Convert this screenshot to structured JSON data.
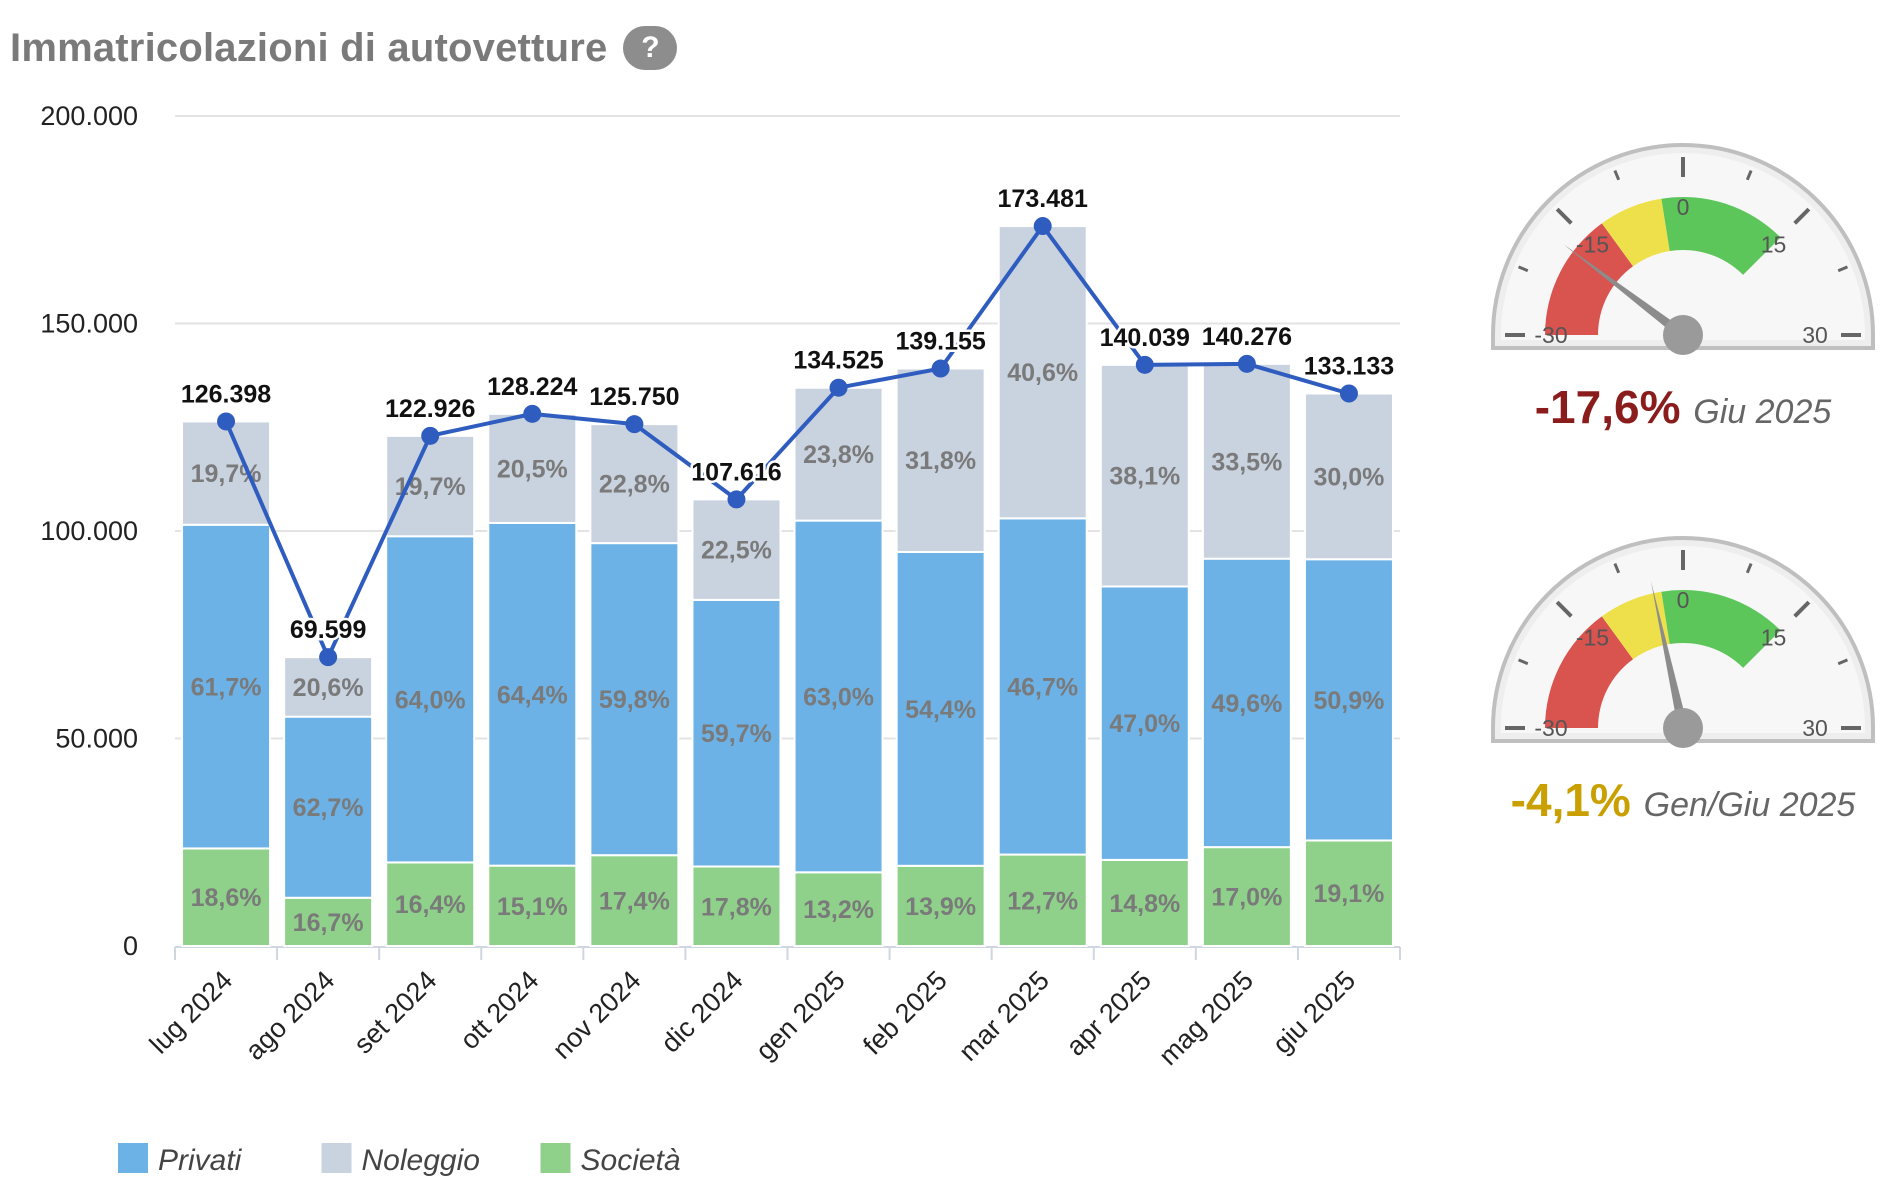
{
  "header": {
    "title": "Immatricolazioni di autovetture",
    "help_label": "?"
  },
  "chart_data": {
    "type": "bar",
    "stacked": true,
    "categories": [
      "lug 2024",
      "ago 2024",
      "set 2024",
      "ott 2024",
      "nov 2024",
      "dic 2024",
      "gen 2025",
      "feb 2025",
      "mar 2025",
      "apr 2025",
      "mag 2025",
      "giu 2025"
    ],
    "yticks": [
      "0",
      "50.000",
      "100.000",
      "150.000",
      "200.000"
    ],
    "ylim": [
      0,
      200000
    ],
    "grid": true,
    "legend_position": "bottom-left",
    "totals": [
      126398,
      69599,
      122926,
      128224,
      125750,
      107616,
      134525,
      139155,
      173481,
      140039,
      140276,
      133133
    ],
    "total_labels": [
      "126.398",
      "69.599",
      "122.926",
      "128.224",
      "125.750",
      "107.616",
      "134.525",
      "139.155",
      "173.481",
      "140.039",
      "140.276",
      "133.133"
    ],
    "series": [
      {
        "name": "Società",
        "color": "#8fd18a",
        "percent_labels": [
          "18,6%",
          "16,7%",
          "16,4%",
          "15,1%",
          "17,4%",
          "17,8%",
          "13,2%",
          "13,9%",
          "12,7%",
          "14,8%",
          "17,0%",
          "19,1%"
        ],
        "shares": [
          18.6,
          16.7,
          16.4,
          15.1,
          17.4,
          17.8,
          13.2,
          13.9,
          12.7,
          14.8,
          17.0,
          19.1
        ]
      },
      {
        "name": "Privati",
        "color": "#6cb2e6",
        "percent_labels": [
          "61,7%",
          "62,7%",
          "64,0%",
          "64,4%",
          "59,8%",
          "59,7%",
          "63,0%",
          "54,4%",
          "46,7%",
          "47,0%",
          "49,6%",
          "50,9%"
        ],
        "shares": [
          61.7,
          62.7,
          64.0,
          64.4,
          59.8,
          59.7,
          63.0,
          54.4,
          46.7,
          47.0,
          49.6,
          50.9
        ]
      },
      {
        "name": "Noleggio",
        "color": "#c9d2df",
        "percent_labels": [
          "19,7%",
          "20,6%",
          "19,7%",
          "20,5%",
          "22,8%",
          "22,5%",
          "23,8%",
          "31,8%",
          "40,6%",
          "38,1%",
          "33,5%",
          "30,0%"
        ],
        "shares": [
          19.7,
          20.6,
          19.7,
          20.5,
          22.8,
          22.5,
          23.8,
          31.8,
          40.6,
          38.1,
          33.5,
          30.0
        ]
      }
    ],
    "line_color": "#2f5cbf",
    "legend": [
      "Privati",
      "Noleggio",
      "Società"
    ]
  },
  "gauges": [
    {
      "value": -17.6,
      "value_label": "-17,6%",
      "period": "Giu 2025",
      "value_color": "#8a1c1c",
      "scale_labels": [
        "-30",
        "-15",
        "0",
        "15",
        "30"
      ]
    },
    {
      "value": -4.1,
      "value_label": "-4,1%",
      "period": "Gen/Giu 2025",
      "value_color": "#c9a000",
      "scale_labels": [
        "-30",
        "-15",
        "0",
        "15",
        "30"
      ]
    }
  ]
}
